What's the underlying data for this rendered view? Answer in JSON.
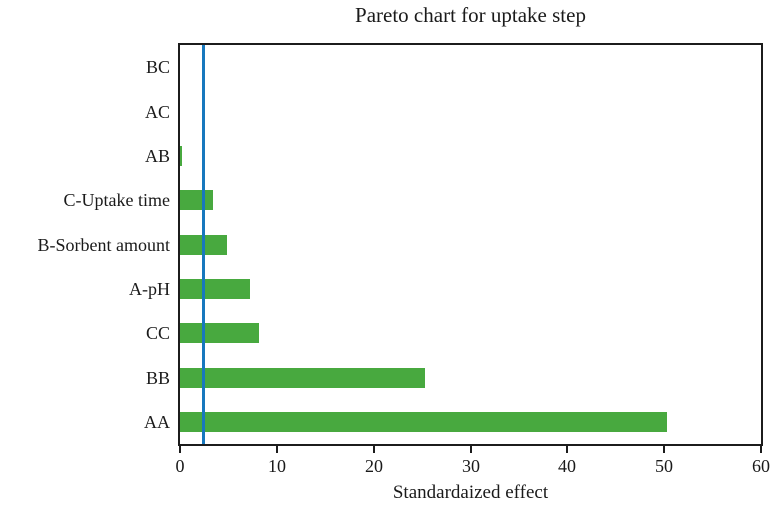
{
  "chart_data": {
    "type": "bar",
    "orientation": "horizontal",
    "title": "Pareto chart for uptake step",
    "xlabel": "Standardaized effect",
    "ylabel": "",
    "categories": [
      "BC",
      "AC",
      "AB",
      "C-Uptake time",
      "B-Sorbent amount",
      "A-pH",
      "CC",
      "BB",
      "AA"
    ],
    "values": [
      0,
      0,
      0.2,
      3.4,
      4.9,
      7.2,
      8.2,
      25.3,
      50.3
    ],
    "xlim": [
      0,
      60
    ],
    "xticks": [
      "0",
      "10",
      "20",
      "30",
      "40",
      "50",
      "60"
    ],
    "xtick_values": [
      0,
      10,
      20,
      30,
      40,
      50,
      60
    ],
    "reference_line": 2.4,
    "grid": false,
    "legend": "none",
    "bar_color": "#48a93f",
    "reference_line_color": "#1778be",
    "axis_color": "#1c1c1c"
  }
}
